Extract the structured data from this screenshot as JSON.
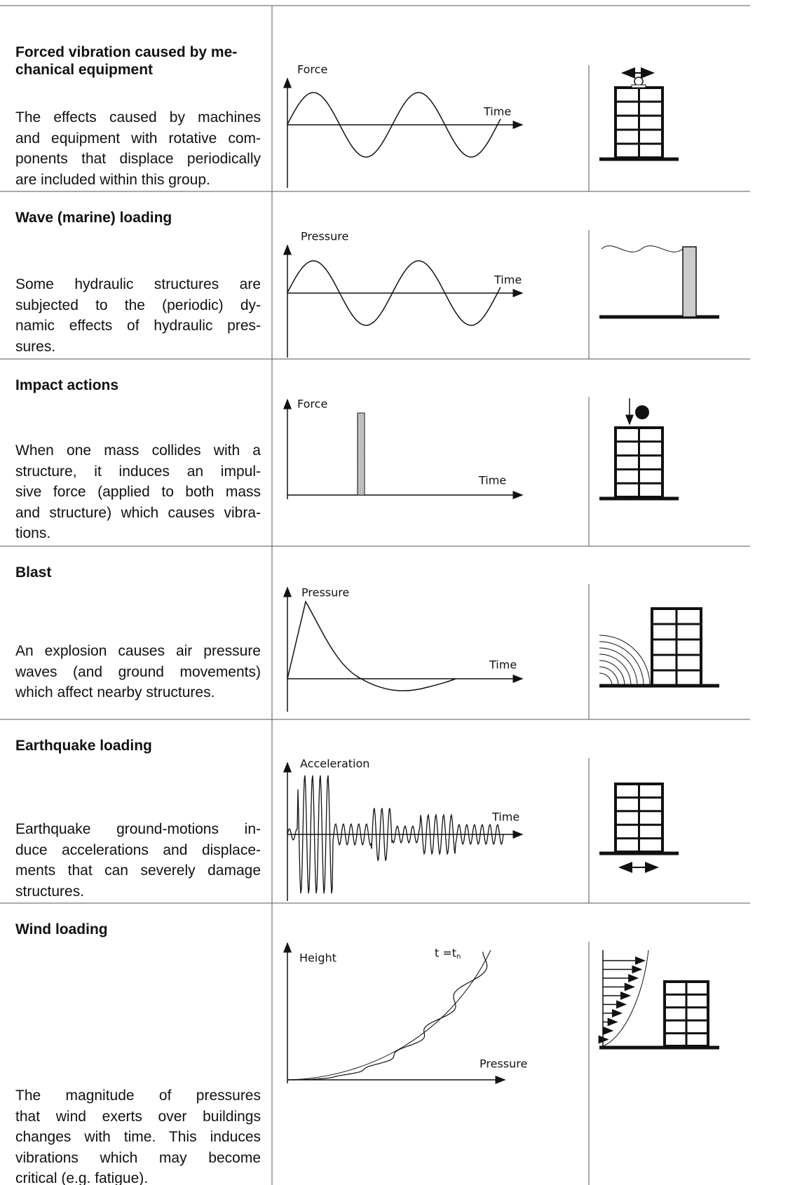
{
  "rows": [
    {
      "title": [
        "Forced vibration caused by me-",
        "chanical equipment"
      ],
      "description": [
        "The effects caused by machines",
        "and equipment with rotative com-",
        "ponents that displace periodically",
        "are included within this group."
      ],
      "graph": {
        "y_label": "Force",
        "x_label": "Time"
      }
    },
    {
      "title": [
        "Wave (marine) loading"
      ],
      "description": [
        "Some hydraulic structures are",
        "subjected to the (periodic) dy-",
        "namic effects of hydraulic pres-",
        "sures."
      ],
      "graph": {
        "y_label": "Pressure",
        "x_label": "Time"
      }
    },
    {
      "title": [
        "Impact actions"
      ],
      "description": [
        "When one mass collides with a",
        "structure, it induces an impul-",
        "sive force (applied to both mass",
        "and structure) which causes vibra-",
        "tions."
      ],
      "graph": {
        "y_label": "Force",
        "x_label": "Time"
      }
    },
    {
      "title": [
        "Blast"
      ],
      "description": [
        "An explosion causes air pressure",
        "waves (and ground movements)",
        "which affect nearby structures."
      ],
      "graph": {
        "y_label": "Pressure",
        "x_label": "Time"
      }
    },
    {
      "title": [
        "Earthquake loading"
      ],
      "description": [
        "Earthquake ground-motions in-",
        "duce accelerations and displace-",
        "ments that can severely damage",
        "structures."
      ],
      "graph": {
        "y_label": "Acceleration",
        "x_label": "Time"
      }
    },
    {
      "title": [
        "Wind loading"
      ],
      "description": [
        "The magnitude of pressures",
        "that wind exerts over buildings",
        "changes with time. This induces",
        "vibrations which may become",
        "critical (e.g. fatigue)."
      ],
      "graph": {
        "y_label": "Height",
        "x_label": "Pressure",
        "curve_label": {
          "text": "t =t",
          "subscript": "n"
        }
      }
    }
  ]
}
